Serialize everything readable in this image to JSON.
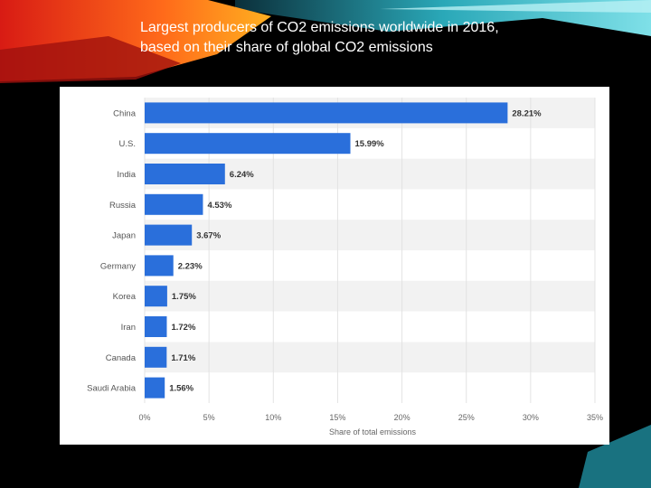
{
  "slide": {
    "title": "Largest producers of CO2 emissions worldwide in 2016, based on their share of global CO2 emissions"
  },
  "colors": {
    "bar": "#2a6fdb",
    "band": "#f2f2f2",
    "label": "#555555",
    "value_label": "#333333"
  },
  "chart_data": {
    "type": "bar",
    "orientation": "horizontal",
    "title": "",
    "xlabel": "Share of total emissions",
    "ylabel": "",
    "xlim": [
      0,
      35
    ],
    "grid": true,
    "legend": "none",
    "categories": [
      "China",
      "U.S.",
      "India",
      "Russia",
      "Japan",
      "Germany",
      "Korea",
      "Iran",
      "Canada",
      "Saudi Arabia"
    ],
    "values": [
      28.21,
      15.99,
      6.24,
      4.53,
      3.67,
      2.23,
      1.75,
      1.72,
      1.71,
      1.56
    ],
    "value_labels": [
      "28.21%",
      "15.99%",
      "6.24%",
      "4.53%",
      "3.67%",
      "2.23%",
      "1.75%",
      "1.72%",
      "1.71%",
      "1.56%"
    ],
    "ticks": [
      0,
      5,
      10,
      15,
      20,
      25,
      30,
      35
    ],
    "tick_labels": [
      "0%",
      "5%",
      "10%",
      "15%",
      "20%",
      "25%",
      "30%",
      "35%"
    ]
  }
}
